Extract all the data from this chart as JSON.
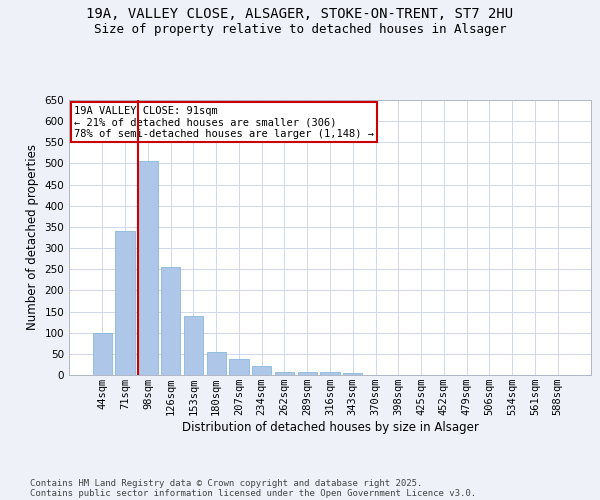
{
  "title_line1": "19A, VALLEY CLOSE, ALSAGER, STOKE-ON-TRENT, ST7 2HU",
  "title_line2": "Size of property relative to detached houses in Alsager",
  "xlabel": "Distribution of detached houses by size in Alsager",
  "ylabel": "Number of detached properties",
  "categories": [
    "44sqm",
    "71sqm",
    "98sqm",
    "126sqm",
    "153sqm",
    "180sqm",
    "207sqm",
    "234sqm",
    "262sqm",
    "289sqm",
    "316sqm",
    "343sqm",
    "370sqm",
    "398sqm",
    "425sqm",
    "452sqm",
    "479sqm",
    "506sqm",
    "534sqm",
    "561sqm",
    "588sqm"
  ],
  "values": [
    100,
    340,
    505,
    255,
    140,
    55,
    38,
    22,
    7,
    7,
    7,
    4,
    1,
    0,
    0,
    0,
    0,
    0,
    0,
    0,
    0
  ],
  "bar_color": "#aec6e8",
  "bar_edge_color": "#7bafd4",
  "annotation_text_line1": "19A VALLEY CLOSE: 91sqm",
  "annotation_text_line2": "← 21% of detached houses are smaller (306)",
  "annotation_text_line3": "78% of semi-detached houses are larger (1,148) →",
  "annotation_box_color": "#ffffff",
  "annotation_border_color": "#cc0000",
  "vline_color": "#cc0000",
  "vline_x_index": 2,
  "ylim": [
    0,
    650
  ],
  "yticks": [
    0,
    50,
    100,
    150,
    200,
    250,
    300,
    350,
    400,
    450,
    500,
    550,
    600,
    650
  ],
  "footer_line1": "Contains HM Land Registry data © Crown copyright and database right 2025.",
  "footer_line2": "Contains public sector information licensed under the Open Government Licence v3.0.",
  "background_color": "#eef2f8",
  "plot_bg_color": "#ffffff",
  "grid_color": "#d0d8e8",
  "title_fontsize": 10,
  "subtitle_fontsize": 9,
  "axis_label_fontsize": 8.5,
  "tick_fontsize": 7.5,
  "footer_fontsize": 6.5,
  "annotation_fontsize": 7.5
}
